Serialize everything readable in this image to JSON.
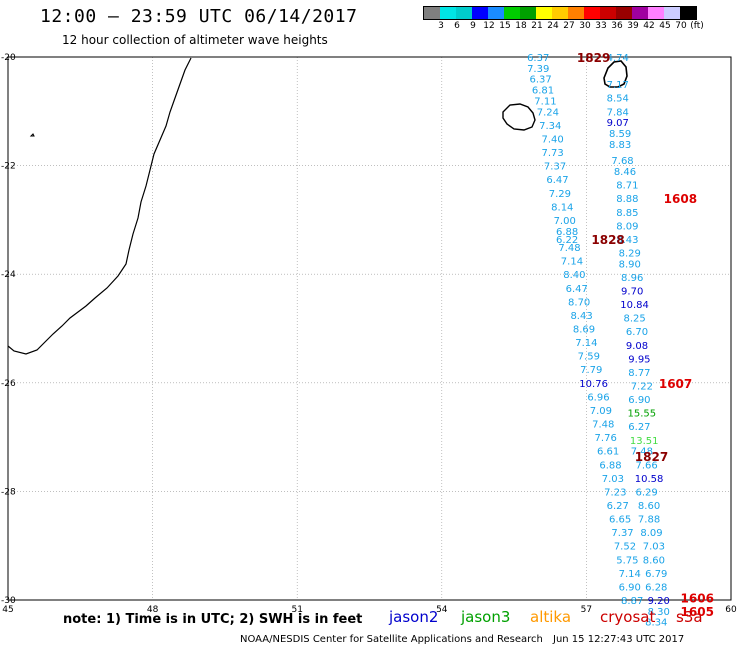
{
  "header": {
    "title": "12:00 – 23:59 UTC 06/14/2017",
    "subtitle": "12 hour collection of altimeter wave heights"
  },
  "colorbar": {
    "colors": [
      "#7f7f7f",
      "#00e5e5",
      "#00cccc",
      "#0000ff",
      "#1a8cff",
      "#00cc00",
      "#00a000",
      "#ffff00",
      "#ffcc00",
      "#ff8000",
      "#ff0000",
      "#cc0000",
      "#990000",
      "#a000a0",
      "#ff80ff",
      "#ccccff",
      "#000000"
    ],
    "labels": [
      "3",
      "6",
      "9",
      "12",
      "15",
      "18",
      "21",
      "24",
      "27",
      "30",
      "33",
      "36",
      "39",
      "42",
      "45",
      "70",
      "(ft)"
    ]
  },
  "axes": {
    "lon_ticks": [
      "45",
      "48",
      "51",
      "54",
      "57",
      "60"
    ],
    "lat_ticks": [
      "-20",
      "-22",
      "-24",
      "-26",
      "-28",
      "-30"
    ],
    "lon_range": [
      45,
      60
    ],
    "lat_range": [
      -20,
      -30
    ]
  },
  "footer": {
    "note": "note: 1) Time is in UTC; 2) SWH is in feet",
    "satellites": [
      {
        "name": "jason2",
        "color": "#0000cc"
      },
      {
        "name": "jason3",
        "color": "#00a000"
      },
      {
        "name": "altika",
        "color": "#ff9900"
      },
      {
        "name": "cryosat",
        "color": "#cc0000"
      },
      {
        "name": "s3a",
        "color": "#cc0000"
      }
    ],
    "credit": "NOAA/NESDIS Center for Satellite Applications and Research",
    "timestamp": "Jun 15 12:27:43 UTC 2017"
  },
  "chart_data": {
    "type": "map",
    "track_west": [
      {
        "lon": 56.0,
        "lat": -20.0,
        "v": "6.37",
        "c": "#1aa3e8"
      },
      {
        "lon": 56.0,
        "lat": -20.2,
        "v": "7.39",
        "c": "#1aa3e8"
      },
      {
        "lon": 56.05,
        "lat": -20.4,
        "v": "6.37",
        "c": "#1aa3e8"
      },
      {
        "lon": 56.1,
        "lat": -20.6,
        "v": "6.81",
        "c": "#1aa3e8"
      },
      {
        "lon": 56.15,
        "lat": -20.8,
        "v": "7.11",
        "c": "#1aa3e8"
      },
      {
        "lon": 56.2,
        "lat": -21.0,
        "v": "7.24",
        "c": "#1aa3e8"
      },
      {
        "lon": 56.25,
        "lat": -21.25,
        "v": "7.34",
        "c": "#1aa3e8"
      },
      {
        "lon": 56.3,
        "lat": -21.5,
        "v": "7.40",
        "c": "#1aa3e8"
      },
      {
        "lon": 56.3,
        "lat": -21.75,
        "v": "7.73",
        "c": "#1aa3e8"
      },
      {
        "lon": 56.35,
        "lat": -22.0,
        "v": "7.37",
        "c": "#1aa3e8"
      },
      {
        "lon": 56.4,
        "lat": -22.25,
        "v": "6.47",
        "c": "#1aa3e8"
      },
      {
        "lon": 56.45,
        "lat": -22.5,
        "v": "7.29",
        "c": "#1aa3e8"
      },
      {
        "lon": 56.5,
        "lat": -22.75,
        "v": "8.14",
        "c": "#1aa3e8"
      },
      {
        "lon": 56.55,
        "lat": -23.0,
        "v": "7.00",
        "c": "#1aa3e8"
      },
      {
        "lon": 56.6,
        "lat": -23.2,
        "v": "6.88",
        "c": "#1aa3e8"
      },
      {
        "lon": 56.6,
        "lat": -23.35,
        "v": "6.22",
        "c": "#1aa3e8"
      },
      {
        "lon": 56.65,
        "lat": -23.5,
        "v": "7.48",
        "c": "#1aa3e8"
      },
      {
        "lon": 56.7,
        "lat": -23.75,
        "v": "7.14",
        "c": "#1aa3e8"
      },
      {
        "lon": 56.75,
        "lat": -24.0,
        "v": "8.40",
        "c": "#1aa3e8"
      },
      {
        "lon": 56.8,
        "lat": -24.25,
        "v": "6.47",
        "c": "#1aa3e8"
      },
      {
        "lon": 56.85,
        "lat": -24.5,
        "v": "8.70",
        "c": "#1aa3e8"
      },
      {
        "lon": 56.9,
        "lat": -24.75,
        "v": "8.43",
        "c": "#1aa3e8"
      },
      {
        "lon": 56.95,
        "lat": -25.0,
        "v": "8.69",
        "c": "#1aa3e8"
      },
      {
        "lon": 57.0,
        "lat": -25.25,
        "v": "7.14",
        "c": "#1aa3e8"
      },
      {
        "lon": 57.05,
        "lat": -25.5,
        "v": "7.59",
        "c": "#1aa3e8"
      },
      {
        "lon": 57.1,
        "lat": -25.75,
        "v": "7.79",
        "c": "#1aa3e8"
      },
      {
        "lon": 57.15,
        "lat": -26.0,
        "v": "10.76",
        "c": "#0000cc"
      },
      {
        "lon": 57.25,
        "lat": -26.25,
        "v": "6.96",
        "c": "#1aa3e8"
      },
      {
        "lon": 57.3,
        "lat": -26.5,
        "v": "7.09",
        "c": "#1aa3e8"
      },
      {
        "lon": 57.35,
        "lat": -26.75,
        "v": "7.48",
        "c": "#1aa3e8"
      },
      {
        "lon": 57.4,
        "lat": -27.0,
        "v": "7.76",
        "c": "#1aa3e8"
      },
      {
        "lon": 57.45,
        "lat": -27.25,
        "v": "6.61",
        "c": "#1aa3e8"
      },
      {
        "lon": 57.5,
        "lat": -27.5,
        "v": "6.88",
        "c": "#1aa3e8"
      },
      {
        "lon": 57.55,
        "lat": -27.75,
        "v": "7.03",
        "c": "#1aa3e8"
      },
      {
        "lon": 57.6,
        "lat": -28.0,
        "v": "7.23",
        "c": "#1aa3e8"
      },
      {
        "lon": 57.65,
        "lat": -28.25,
        "v": "6.27",
        "c": "#1aa3e8"
      },
      {
        "lon": 57.7,
        "lat": -28.5,
        "v": "6.65",
        "c": "#1aa3e8"
      },
      {
        "lon": 57.75,
        "lat": -28.75,
        "v": "7.37",
        "c": "#1aa3e8"
      },
      {
        "lon": 57.8,
        "lat": -29.0,
        "v": "7.52",
        "c": "#1aa3e8"
      },
      {
        "lon": 57.85,
        "lat": -29.25,
        "v": "5.75",
        "c": "#1aa3e8"
      },
      {
        "lon": 57.9,
        "lat": -29.5,
        "v": "7.14",
        "c": "#1aa3e8"
      },
      {
        "lon": 57.9,
        "lat": -29.75,
        "v": "6.90",
        "c": "#1aa3e8"
      },
      {
        "lon": 57.95,
        "lat": -30.0,
        "v": "8.87",
        "c": "#1aa3e8"
      }
    ],
    "track_east": [
      {
        "lon": 57.65,
        "lat": -20.0,
        "v": "4.74",
        "c": "#1aa3e8"
      },
      {
        "lon": 57.65,
        "lat": -20.5,
        "v": "7.17",
        "c": "#1aa3e8"
      },
      {
        "lon": 57.65,
        "lat": -20.75,
        "v": "8.54",
        "c": "#1aa3e8"
      },
      {
        "lon": 57.65,
        "lat": -21.0,
        "v": "7.84",
        "c": "#1aa3e8"
      },
      {
        "lon": 57.65,
        "lat": -21.2,
        "v": "9.07",
        "c": "#0000cc"
      },
      {
        "lon": 57.7,
        "lat": -21.4,
        "v": "8.59",
        "c": "#1aa3e8"
      },
      {
        "lon": 57.7,
        "lat": -21.6,
        "v": "8.83",
        "c": "#1aa3e8"
      },
      {
        "lon": 57.75,
        "lat": -21.9,
        "v": "7.68",
        "c": "#1aa3e8"
      },
      {
        "lon": 57.8,
        "lat": -22.1,
        "v": "8.46",
        "c": "#1aa3e8"
      },
      {
        "lon": 57.85,
        "lat": -22.35,
        "v": "8.71",
        "c": "#1aa3e8"
      },
      {
        "lon": 57.85,
        "lat": -22.6,
        "v": "8.88",
        "c": "#1aa3e8"
      },
      {
        "lon": 57.85,
        "lat": -22.85,
        "v": "8.85",
        "c": "#1aa3e8"
      },
      {
        "lon": 57.85,
        "lat": -23.1,
        "v": "8.09",
        "c": "#1aa3e8"
      },
      {
        "lon": 57.85,
        "lat": -23.35,
        "v": "8.43",
        "c": "#1aa3e8"
      },
      {
        "lon": 57.9,
        "lat": -23.6,
        "v": "8.29",
        "c": "#1aa3e8"
      },
      {
        "lon": 57.9,
        "lat": -23.8,
        "v": "8.90",
        "c": "#1aa3e8"
      },
      {
        "lon": 57.95,
        "lat": -24.05,
        "v": "8.96",
        "c": "#1aa3e8"
      },
      {
        "lon": 57.95,
        "lat": -24.3,
        "v": "9.70",
        "c": "#0000cc"
      },
      {
        "lon": 58.0,
        "lat": -24.55,
        "v": "10.84",
        "c": "#0000cc"
      },
      {
        "lon": 58.0,
        "lat": -24.8,
        "v": "8.25",
        "c": "#1aa3e8"
      },
      {
        "lon": 58.05,
        "lat": -25.05,
        "v": "6.70",
        "c": "#1aa3e8"
      },
      {
        "lon": 58.05,
        "lat": -25.3,
        "v": "9.08",
        "c": "#0000cc"
      },
      {
        "lon": 58.1,
        "lat": -25.55,
        "v": "9.95",
        "c": "#0000cc"
      },
      {
        "lon": 58.1,
        "lat": -25.8,
        "v": "8.77",
        "c": "#1aa3e8"
      },
      {
        "lon": 58.15,
        "lat": -26.05,
        "v": "7.22",
        "c": "#1aa3e8"
      },
      {
        "lon": 58.1,
        "lat": -26.3,
        "v": "6.90",
        "c": "#1aa3e8"
      },
      {
        "lon": 58.15,
        "lat": -26.55,
        "v": "15.55",
        "c": "#00a000"
      },
      {
        "lon": 58.1,
        "lat": -26.8,
        "v": "6.27",
        "c": "#1aa3e8"
      },
      {
        "lon": 58.2,
        "lat": -27.05,
        "v": "13.51",
        "c": "#44dd44"
      },
      {
        "lon": 58.15,
        "lat": -27.25,
        "v": "7.48",
        "c": "#1aa3e8"
      },
      {
        "lon": 58.25,
        "lat": -27.5,
        "v": "7.66",
        "c": "#1aa3e8"
      },
      {
        "lon": 58.3,
        "lat": -27.75,
        "v": "10.58",
        "c": "#0000cc"
      },
      {
        "lon": 58.25,
        "lat": -28.0,
        "v": "6.29",
        "c": "#1aa3e8"
      },
      {
        "lon": 58.3,
        "lat": -28.25,
        "v": "8.60",
        "c": "#1aa3e8"
      },
      {
        "lon": 58.3,
        "lat": -28.5,
        "v": "7.88",
        "c": "#1aa3e8"
      },
      {
        "lon": 58.35,
        "lat": -28.75,
        "v": "8.09",
        "c": "#1aa3e8"
      },
      {
        "lon": 58.4,
        "lat": -29.0,
        "v": "7.03",
        "c": "#1aa3e8"
      },
      {
        "lon": 58.4,
        "lat": -29.25,
        "v": "8.60",
        "c": "#1aa3e8"
      },
      {
        "lon": 58.45,
        "lat": -29.5,
        "v": "6.79",
        "c": "#1aa3e8"
      },
      {
        "lon": 58.45,
        "lat": -29.75,
        "v": "6.28",
        "c": "#1aa3e8"
      },
      {
        "lon": 58.5,
        "lat": -30.0,
        "v": "9.20",
        "c": "#0000cc"
      },
      {
        "lon": 58.5,
        "lat": -30.2,
        "v": "8.30",
        "c": "#1aa3e8"
      },
      {
        "lon": 58.45,
        "lat": -30.4,
        "v": "8.34",
        "c": "#1aa3e8"
      }
    ],
    "time_labels": [
      {
        "lon": 57.15,
        "lat": -20.0,
        "t": "1829",
        "c": "#8b0000"
      },
      {
        "lon": 58.95,
        "lat": -22.6,
        "t": "1608",
        "c": "#dd0000"
      },
      {
        "lon": 57.45,
        "lat": -23.35,
        "t": "1828",
        "c": "#8b0000"
      },
      {
        "lon": 58.85,
        "lat": -26.0,
        "t": "1607",
        "c": "#dd0000"
      },
      {
        "lon": 58.35,
        "lat": -27.35,
        "t": "1827",
        "c": "#8b0000"
      },
      {
        "lon": 59.3,
        "lat": -29.95,
        "t": "1606",
        "c": "#dd0000"
      },
      {
        "lon": 59.3,
        "lat": -30.2,
        "t": "1605",
        "c": "#dd0000"
      }
    ]
  }
}
